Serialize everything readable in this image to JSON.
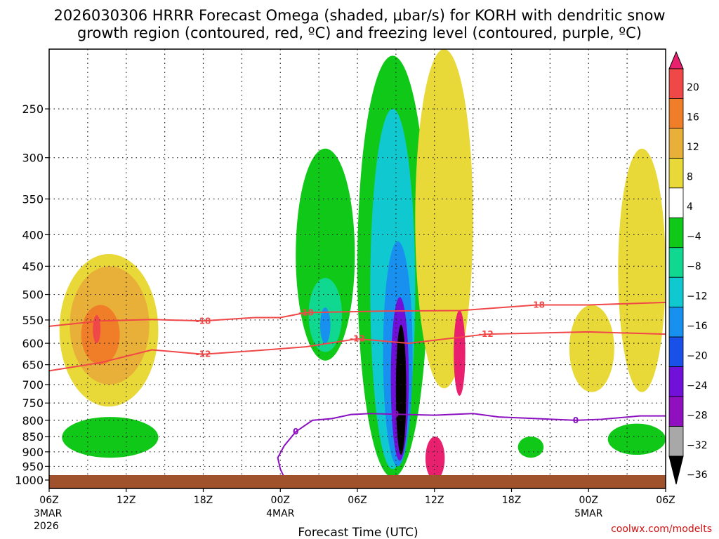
{
  "chart_data": {
    "type": "time-height contour",
    "title_line1": "2026030306 HRRR Forecast Omega (shaded, μbar/s) for KORH with dendritic snow",
    "title_line2": "growth region (contoured, red, ºC) and freezing level (contoured, purple, ºC)",
    "xlabel": "Forecast Time (UTC)",
    "ylabel": "",
    "credit": "coolwx.com/modelts",
    "y_ticks": [
      "250",
      "300",
      "350",
      "400",
      "450",
      "500",
      "550",
      "600",
      "650",
      "700",
      "750",
      "800",
      "850",
      "900",
      "950",
      "1000"
    ],
    "y_values": [
      250,
      300,
      350,
      400,
      450,
      500,
      550,
      600,
      650,
      700,
      750,
      800,
      850,
      900,
      950,
      1000
    ],
    "ylim": [
      200,
      1000
    ],
    "x_ticks": [
      {
        "label": "06Z",
        "sub1": "3MAR",
        "sub2": "2026",
        "hour": 0
      },
      {
        "label": "12Z",
        "sub1": "",
        "sub2": "",
        "hour": 6
      },
      {
        "label": "18Z",
        "sub1": "",
        "sub2": "",
        "hour": 12
      },
      {
        "label": "00Z",
        "sub1": "4MAR",
        "sub2": "",
        "hour": 18
      },
      {
        "label": "06Z",
        "sub1": "",
        "sub2": "",
        "hour": 24
      },
      {
        "label": "12Z",
        "sub1": "",
        "sub2": "",
        "hour": 30
      },
      {
        "label": "18Z",
        "sub1": "",
        "sub2": "",
        "hour": 36
      },
      {
        "label": "00Z",
        "sub1": "5MAR",
        "sub2": "",
        "hour": 42
      },
      {
        "label": "06Z",
        "sub1": "",
        "sub2": "",
        "hour": 48
      }
    ],
    "xlim": [
      0,
      48
    ],
    "colorbar_levels": [
      "20",
      "16",
      "12",
      "8",
      "4",
      "−4",
      "−8",
      "−12",
      "−16",
      "−20",
      "−24",
      "−28",
      "−32",
      "−36"
    ],
    "colorbar_colors": [
      "#e8206e",
      "#f04848",
      "#f07e28",
      "#e8b038",
      "#e8d838",
      "#ffffff",
      "#10c818",
      "#10d890",
      "#10c8d0",
      "#1890f0",
      "#1850e8",
      "#7010d8",
      "#9010c0",
      "#a8a8a8",
      "#000000"
    ],
    "contour_dgz_red": [
      {
        "label": "-18",
        "points": [
          [
            0,
            563
          ],
          [
            4,
            552
          ],
          [
            8,
            549
          ],
          [
            12,
            552
          ],
          [
            16,
            545
          ],
          [
            18,
            545
          ],
          [
            20,
            535
          ],
          [
            26,
            532
          ],
          [
            32,
            531
          ],
          [
            38,
            520
          ],
          [
            42,
            520
          ],
          [
            48,
            515
          ]
        ]
      },
      {
        "label": "-12",
        "points": [
          [
            0,
            665
          ],
          [
            4,
            645
          ],
          [
            8,
            615
          ],
          [
            12,
            625
          ],
          [
            16,
            617
          ],
          [
            20,
            608
          ],
          [
            24,
            590
          ],
          [
            28,
            600
          ],
          [
            34,
            580
          ],
          [
            42,
            575
          ],
          [
            48,
            580
          ]
        ]
      }
    ],
    "contour_freezing_purple": [
      {
        "label": "0",
        "points": [
          [
            18.4,
            1000
          ],
          [
            18.0,
            960
          ],
          [
            17.8,
            920
          ],
          [
            18.3,
            880
          ],
          [
            19.2,
            835
          ],
          [
            20.5,
            800
          ],
          [
            22,
            795
          ],
          [
            23.5,
            783
          ],
          [
            25,
            780
          ],
          [
            27,
            782
          ],
          [
            30,
            785
          ],
          [
            33,
            780
          ],
          [
            35,
            790
          ],
          [
            38,
            795
          ],
          [
            41,
            800
          ],
          [
            43,
            797
          ],
          [
            46,
            787
          ],
          [
            48,
            787
          ]
        ]
      }
    ],
    "omega_regions": [
      {
        "color": "#e8d838",
        "x": [
          0.8,
          8.5
        ],
        "p": [
          430,
          760
        ]
      },
      {
        "color": "#e8b038",
        "x": [
          1.6,
          7.8
        ],
        "p": [
          450,
          700
        ]
      },
      {
        "color": "#f07e28",
        "x": [
          2.5,
          5.5
        ],
        "p": [
          520,
          650
        ]
      },
      {
        "color": "#f04848",
        "x": [
          3.4,
          4.0
        ],
        "p": [
          540,
          600
        ]
      },
      {
        "color": "#10c818",
        "x": [
          19.2,
          23.8
        ],
        "p": [
          290,
          640
        ]
      },
      {
        "color": "#10d890",
        "x": [
          20.2,
          22.8
        ],
        "p": [
          470,
          620
        ]
      },
      {
        "color": "#1890f0",
        "x": [
          21.1,
          21.9
        ],
        "p": [
          525,
          600
        ]
      },
      {
        "color": "#10c818",
        "x": [
          24.0,
          29.5
        ],
        "p": [
          205,
          990
        ]
      },
      {
        "color": "#10c8d0",
        "x": [
          25.0,
          28.5
        ],
        "p": [
          250,
          960
        ]
      },
      {
        "color": "#1890f0",
        "x": [
          26.0,
          28.3
        ],
        "p": [
          410,
          950
        ]
      },
      {
        "color": "#7010d8",
        "x": [
          26.6,
          28.0
        ],
        "p": [
          505,
          930
        ]
      },
      {
        "color": "#000000",
        "x": [
          27.0,
          27.8
        ],
        "p": [
          560,
          910
        ]
      },
      {
        "color": "#e8d838",
        "x": [
          28.5,
          33.0
        ],
        "p": [
          200,
          710
        ]
      },
      {
        "color": "#e8206e",
        "x": [
          31.5,
          32.4
        ],
        "p": [
          530,
          730
        ]
      },
      {
        "color": "#e8d838",
        "x": [
          40.5,
          44.0
        ],
        "p": [
          520,
          720
        ]
      },
      {
        "color": "#e8d838",
        "x": [
          44.3,
          48.0
        ],
        "p": [
          290,
          720
        ]
      },
      {
        "color": "#10c818",
        "x": [
          1.0,
          8.5
        ],
        "p": [
          790,
          920
        ]
      },
      {
        "color": "#10c818",
        "x": [
          36.5,
          38.5
        ],
        "p": [
          850,
          920
        ]
      },
      {
        "color": "#10c818",
        "x": [
          43.5,
          48.0
        ],
        "p": [
          810,
          910
        ]
      },
      {
        "color": "#e8206e",
        "x": [
          29.3,
          30.8
        ],
        "p": [
          850,
          1000
        ]
      }
    ]
  }
}
